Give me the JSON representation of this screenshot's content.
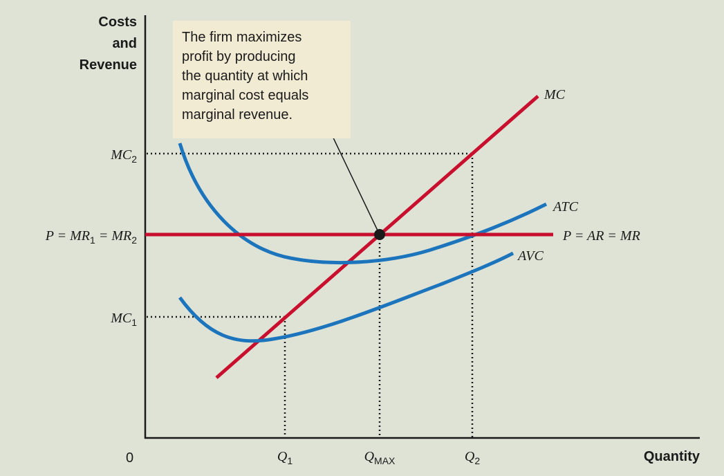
{
  "chart_data": {
    "type": "line",
    "title": "",
    "y_axis_title": [
      "Costs",
      "and",
      "Revenue"
    ],
    "x_axis_title": "Quantity",
    "origin_label": "0",
    "y_ticks": [
      {
        "main": "MC",
        "sub": "2"
      },
      {
        "prefix": "P = MR",
        "sub1": "1",
        "mid": " = MR",
        "sub2": "2"
      },
      {
        "main": "MC",
        "sub": "1"
      }
    ],
    "x_ticks": [
      {
        "main": "Q",
        "sub": "1"
      },
      {
        "main": "Q",
        "sub": "MAX"
      },
      {
        "main": "Q",
        "sub": "2"
      }
    ],
    "series": [
      {
        "name": "MC",
        "color": "#c8102e"
      },
      {
        "name": "ATC",
        "color": "#1c75bc"
      },
      {
        "name": "AVC",
        "color": "#1c75bc"
      },
      {
        "name": "P = AR = MR",
        "color": "#c8102e"
      }
    ],
    "annotation": {
      "lines": [
        "The firm maximizes",
        "profit by producing",
        "the quantity at which",
        "marginal cost equals",
        "marginal revenue."
      ]
    }
  }
}
